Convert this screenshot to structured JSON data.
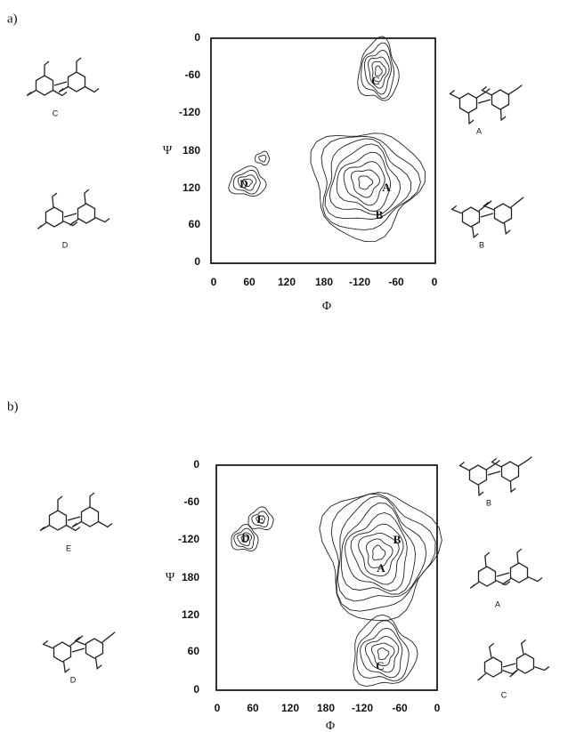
{
  "panels": [
    {
      "label": "a)",
      "x_axis": {
        "title": "Φ",
        "ticks": [
          "0",
          "60",
          "120",
          "180",
          "-120",
          "-60",
          "0"
        ]
      },
      "y_axis": {
        "title": "Ψ",
        "ticks": [
          "0",
          "-60",
          "-120",
          "180",
          "120",
          "60",
          "0"
        ]
      },
      "regions": [
        "C",
        "A",
        "B",
        "D"
      ],
      "structures": [
        "C",
        "A",
        "D",
        "B"
      ]
    },
    {
      "label": "b)",
      "x_axis": {
        "title": "Φ",
        "ticks": [
          "0",
          "60",
          "120",
          "180",
          "-120",
          "-60",
          "0"
        ]
      },
      "y_axis": {
        "title": "Ψ",
        "ticks": [
          "0",
          "-60",
          "-120",
          "180",
          "120",
          "60",
          "0"
        ]
      },
      "regions": [
        "E",
        "D",
        "B",
        "A",
        "C"
      ],
      "structures": [
        "E",
        "B",
        "A",
        "D",
        "C"
      ]
    }
  ]
}
